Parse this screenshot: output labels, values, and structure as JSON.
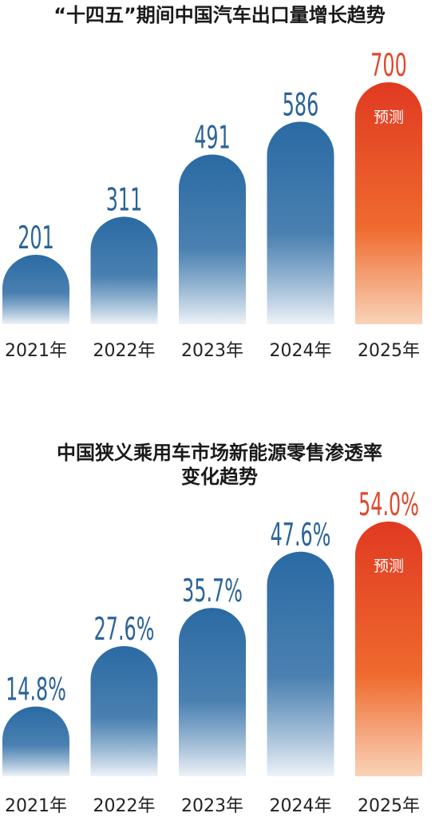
{
  "colors": {
    "actual_top": "#2a6aa3",
    "actual_bottom": "#eef3f8",
    "actual_label": "#2b6399",
    "forecast_top": "#e03a22",
    "forecast_bottom": "#f9d3b8",
    "forecast_label": "#e2462c",
    "category_label": "#222222"
  },
  "chart_data": [
    {
      "type": "bar",
      "title": "“十四五”期间中国汽车出口量增长趋势",
      "categories": [
        "2021年",
        "2022年",
        "2023年",
        "2024年",
        "2025年"
      ],
      "values": [
        201,
        311,
        491,
        586,
        700
      ],
      "value_labels": [
        "201",
        "311",
        "491",
        "586",
        "700"
      ],
      "forecast_index": 4,
      "forecast_label": "预测",
      "ylim": [
        0,
        700
      ]
    },
    {
      "type": "bar",
      "title": "中国狭义乘用车市场新能源零售渗透率\n变化趋势",
      "title_lines": [
        "中国狭义乘用车市场新能源零售渗透率",
        "变化趋势"
      ],
      "categories": [
        "2021年",
        "2022年",
        "2023年",
        "2024年",
        "2025年"
      ],
      "values": [
        14.8,
        27.6,
        35.7,
        47.6,
        54.0
      ],
      "value_labels": [
        "14.8%",
        "27.6%",
        "35.7%",
        "47.6%",
        "54.0%"
      ],
      "forecast_index": 4,
      "forecast_label": "预测",
      "ylim": [
        0,
        54.0
      ]
    }
  ]
}
